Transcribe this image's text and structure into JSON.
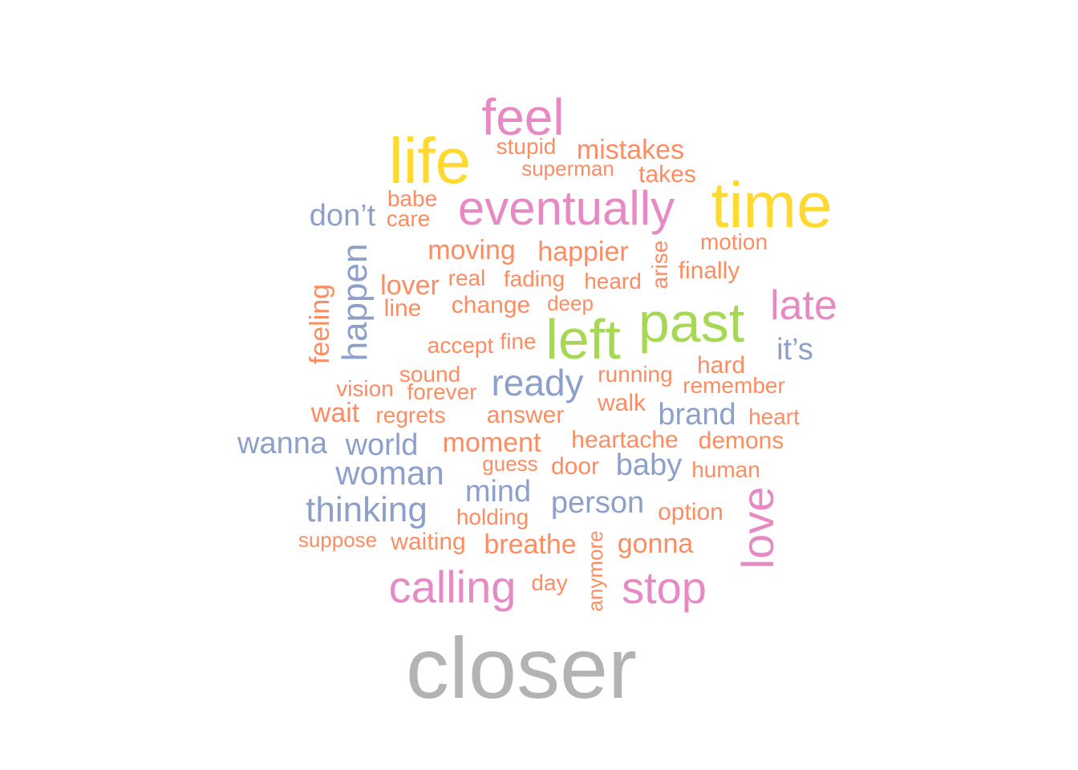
{
  "palette": {
    "gray": "#b3b3b3",
    "yellow": "#ffd92f",
    "pink": "#e78ac3",
    "green": "#a6d854",
    "blue": "#8da0cb",
    "orange": "#fc8d62"
  },
  "words": [
    {
      "text": "closer",
      "color": "gray"
    },
    {
      "text": "time",
      "color": "yellow"
    },
    {
      "text": "life",
      "color": "yellow"
    },
    {
      "text": "feel",
      "color": "pink"
    },
    {
      "text": "eventually",
      "color": "pink"
    },
    {
      "text": "past",
      "color": "green"
    },
    {
      "text": "left",
      "color": "green"
    },
    {
      "text": "late",
      "color": "pink"
    },
    {
      "text": "love",
      "color": "pink"
    },
    {
      "text": "calling",
      "color": "pink"
    },
    {
      "text": "stop",
      "color": "pink"
    },
    {
      "text": "ready",
      "color": "blue"
    },
    {
      "text": "happen",
      "color": "blue"
    },
    {
      "text": "thinking",
      "color": "blue"
    },
    {
      "text": "woman",
      "color": "blue"
    },
    {
      "text": "don’t",
      "color": "blue"
    },
    {
      "text": "wanna",
      "color": "blue"
    },
    {
      "text": "world",
      "color": "blue"
    },
    {
      "text": "brand",
      "color": "blue"
    },
    {
      "text": "baby",
      "color": "blue"
    },
    {
      "text": "person",
      "color": "blue"
    },
    {
      "text": "mind",
      "color": "blue"
    },
    {
      "text": "it’s",
      "color": "blue"
    },
    {
      "text": "mistakes",
      "color": "orange"
    },
    {
      "text": "stupid",
      "color": "orange"
    },
    {
      "text": "superman",
      "color": "orange"
    },
    {
      "text": "takes",
      "color": "orange"
    },
    {
      "text": "babe",
      "color": "orange"
    },
    {
      "text": "care",
      "color": "orange"
    },
    {
      "text": "motion",
      "color": "orange"
    },
    {
      "text": "moving",
      "color": "orange"
    },
    {
      "text": "happier",
      "color": "orange"
    },
    {
      "text": "arise",
      "color": "orange"
    },
    {
      "text": "finally",
      "color": "orange"
    },
    {
      "text": "lover",
      "color": "orange"
    },
    {
      "text": "real",
      "color": "orange"
    },
    {
      "text": "fading",
      "color": "orange"
    },
    {
      "text": "heard",
      "color": "orange"
    },
    {
      "text": "feeling",
      "color": "orange"
    },
    {
      "text": "line",
      "color": "orange"
    },
    {
      "text": "change",
      "color": "orange"
    },
    {
      "text": "deep",
      "color": "orange"
    },
    {
      "text": "accept",
      "color": "orange"
    },
    {
      "text": "fine",
      "color": "orange"
    },
    {
      "text": "hard",
      "color": "orange"
    },
    {
      "text": "sound",
      "color": "orange"
    },
    {
      "text": "running",
      "color": "orange"
    },
    {
      "text": "vision",
      "color": "orange"
    },
    {
      "text": "forever",
      "color": "orange"
    },
    {
      "text": "remember",
      "color": "orange"
    },
    {
      "text": "wait",
      "color": "orange"
    },
    {
      "text": "regrets",
      "color": "orange"
    },
    {
      "text": "answer",
      "color": "orange"
    },
    {
      "text": "walk",
      "color": "orange"
    },
    {
      "text": "heart",
      "color": "orange"
    },
    {
      "text": "moment",
      "color": "orange"
    },
    {
      "text": "heartache",
      "color": "orange"
    },
    {
      "text": "demons",
      "color": "orange"
    },
    {
      "text": "guess",
      "color": "orange"
    },
    {
      "text": "door",
      "color": "orange"
    },
    {
      "text": "human",
      "color": "orange"
    },
    {
      "text": "holding",
      "color": "orange"
    },
    {
      "text": "option",
      "color": "orange"
    },
    {
      "text": "suppose",
      "color": "orange"
    },
    {
      "text": "waiting",
      "color": "orange"
    },
    {
      "text": "breathe",
      "color": "orange"
    },
    {
      "text": "gonna",
      "color": "orange"
    },
    {
      "text": "anymore",
      "color": "orange"
    },
    {
      "text": "day",
      "color": "orange"
    }
  ]
}
